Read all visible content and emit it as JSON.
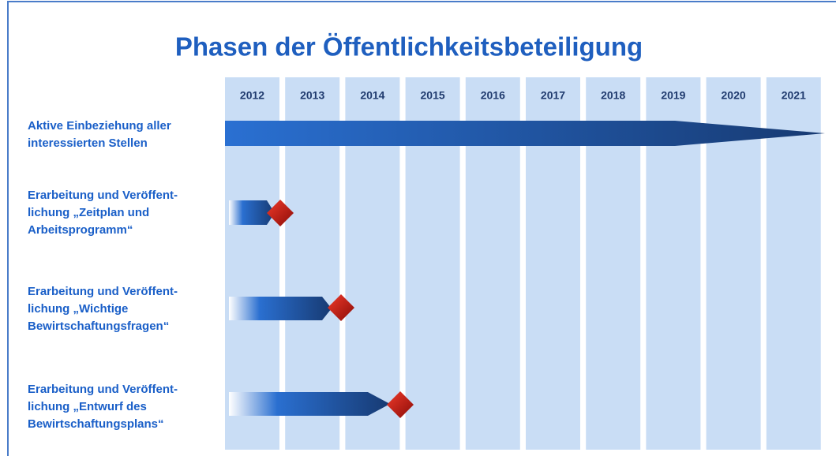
{
  "title": "Phasen der Öffentlichkeitsbeteiligung",
  "years": [
    "2012",
    "2013",
    "2014",
    "2015",
    "2016",
    "2017",
    "2018",
    "2019",
    "2020",
    "2021"
  ],
  "rows": [
    {
      "lines": [
        "Aktive Einbeziehung aller",
        "interessierten Stellen"
      ]
    },
    {
      "lines": [
        "Erarbeitung und Veröffent-",
        "lichung „Zeitplan und",
        "Arbeitsprogramm“"
      ]
    },
    {
      "lines": [
        "Erarbeitung und Veröffent-",
        "lichung „Wichtige",
        "Bewirtschaftungsfragen“"
      ]
    },
    {
      "lines": [
        "Erarbeitung und Veröffent-",
        "lichung „Entwurf des",
        "Bewirtschaftungsplans“"
      ]
    }
  ]
}
